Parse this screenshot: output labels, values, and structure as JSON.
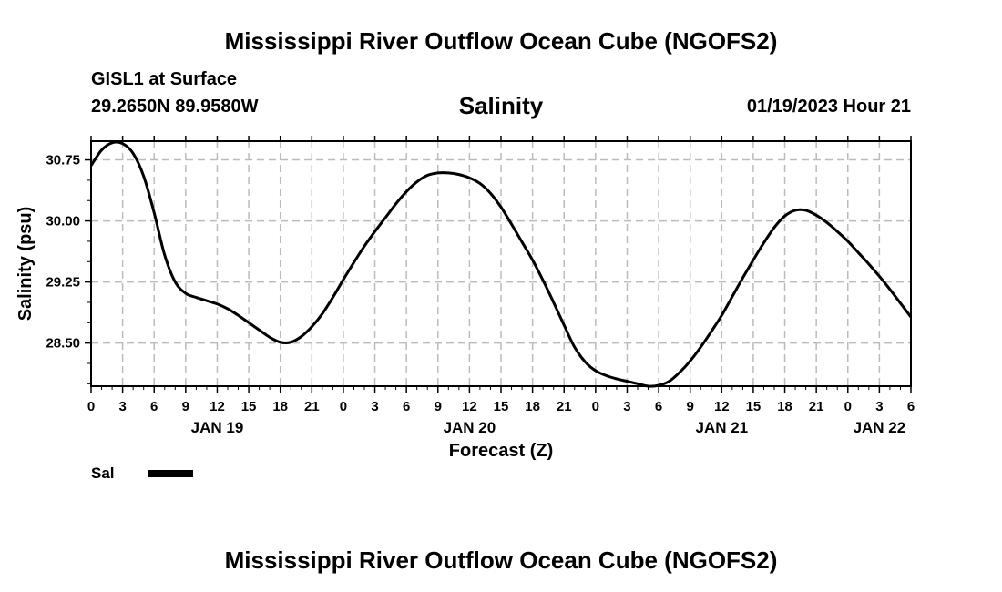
{
  "header": {
    "title": "Mississippi River Outflow Ocean Cube (NGOFS2)",
    "station": "GISL1 at Surface",
    "coords": "29.2650N  89.9580W",
    "variable": "Salinity",
    "timestamp": "01/19/2023 Hour 21"
  },
  "legend": {
    "label": "Sal"
  },
  "footer": {
    "title": "Mississippi River Outflow Ocean Cube (NGOFS2)"
  },
  "chart_data": {
    "type": "line",
    "ylabel": "Salinity (psu)",
    "xlabel": "Forecast (Z)",
    "ylim": [
      27.97,
      30.98
    ],
    "yticks": [
      28.5,
      29.25,
      30.0,
      30.75
    ],
    "ytick_labels": [
      "28.50",
      "29.25",
      "30.00",
      "30.75"
    ],
    "xlim": [
      0,
      78
    ],
    "xticks": [
      0,
      3,
      6,
      9,
      12,
      15,
      18,
      21,
      24,
      27,
      30,
      33,
      36,
      39,
      42,
      45,
      48,
      51,
      54,
      57,
      60,
      63,
      66,
      69,
      72,
      75,
      78
    ],
    "xtick_labels": [
      "0",
      "3",
      "6",
      "9",
      "12",
      "15",
      "18",
      "21",
      "0",
      "3",
      "6",
      "9",
      "12",
      "15",
      "18",
      "21",
      "0",
      "3",
      "6",
      "9",
      "12",
      "15",
      "18",
      "21",
      "0",
      "3",
      "6"
    ],
    "date_labels": [
      {
        "x": 12,
        "label": "JAN 19"
      },
      {
        "x": 36,
        "label": "JAN 20"
      },
      {
        "x": 60,
        "label": "JAN 21"
      },
      {
        "x": 75,
        "label": "JAN 22"
      }
    ],
    "grid": true,
    "series": [
      {
        "name": "Sal",
        "color": "#000000",
        "x": [
          0,
          1,
          2,
          3,
          4,
          5,
          6,
          7,
          8,
          9,
          10,
          11,
          12,
          13,
          14,
          15,
          16,
          17,
          18,
          19,
          20,
          21,
          22,
          23,
          24,
          25,
          26,
          27,
          28,
          29,
          30,
          31,
          32,
          33,
          34,
          35,
          36,
          37,
          38,
          39,
          40,
          41,
          42,
          43,
          44,
          45,
          46,
          47,
          48,
          49,
          50,
          51,
          52,
          53,
          54,
          55,
          56,
          57,
          58,
          59,
          60,
          61,
          62,
          63,
          64,
          65,
          66,
          67,
          68,
          69,
          70,
          71,
          72,
          73,
          74,
          75,
          76,
          77,
          78
        ],
        "values": [
          30.68,
          30.87,
          30.96,
          30.95,
          30.83,
          30.55,
          30.1,
          29.58,
          29.25,
          29.11,
          29.06,
          29.02,
          28.98,
          28.92,
          28.84,
          28.75,
          28.66,
          28.57,
          28.51,
          28.51,
          28.58,
          28.7,
          28.86,
          29.06,
          29.28,
          29.49,
          29.69,
          29.87,
          30.04,
          30.21,
          30.36,
          30.48,
          30.56,
          30.59,
          30.59,
          30.57,
          30.53,
          30.46,
          30.34,
          30.17,
          29.96,
          29.74,
          29.52,
          29.27,
          29.0,
          28.72,
          28.45,
          28.27,
          28.16,
          28.1,
          28.06,
          28.03,
          28.0,
          27.97,
          27.98,
          28.03,
          28.14,
          28.28,
          28.45,
          28.64,
          28.84,
          29.07,
          29.3,
          29.52,
          29.73,
          29.92,
          30.06,
          30.13,
          30.13,
          30.07,
          29.98,
          29.87,
          29.75,
          29.61,
          29.47,
          29.32,
          29.16,
          28.99,
          28.82
        ]
      }
    ]
  }
}
